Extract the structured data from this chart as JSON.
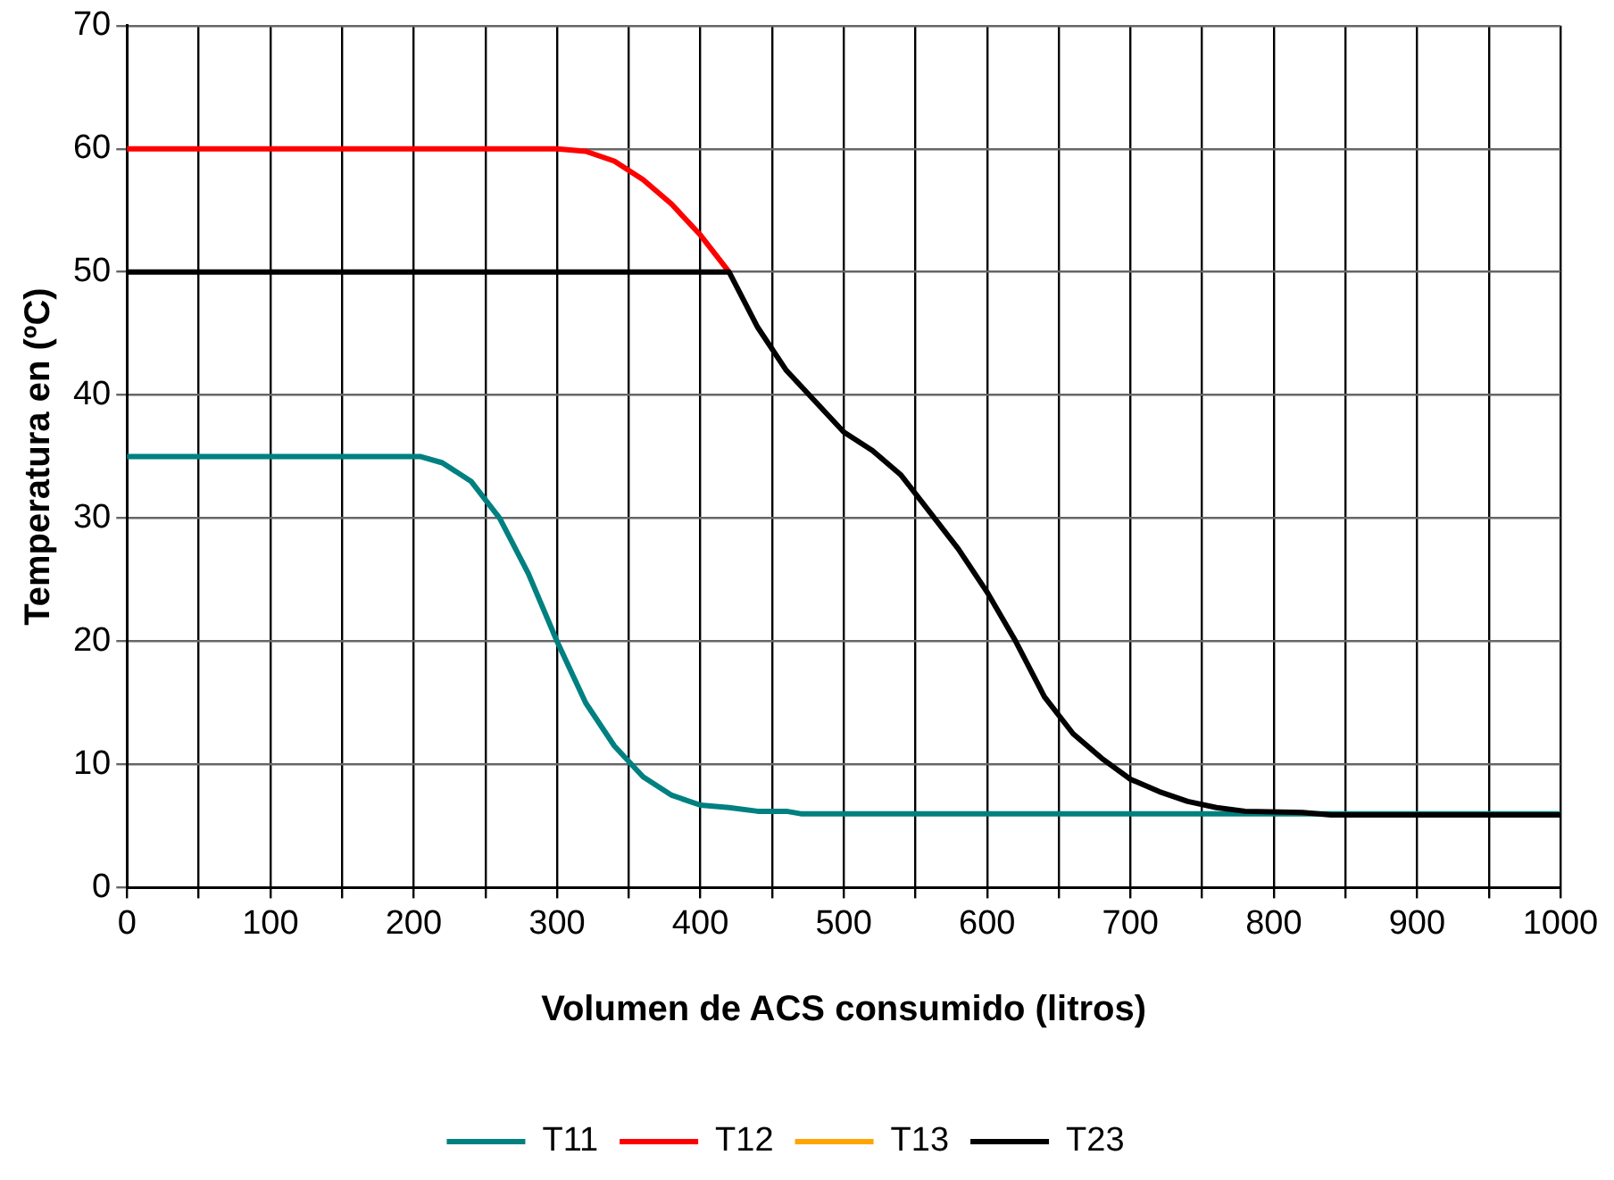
{
  "chart_data": {
    "type": "line",
    "xlabel": "Volumen de ACS consumido (litros)",
    "ylabel": "Temperatura en (ºC)",
    "xlim": [
      0,
      1000
    ],
    "ylim": [
      0,
      70
    ],
    "xticks": [
      0,
      {
        "value": 50,
        "label": null
      },
      100,
      {
        "value": 150,
        "label": null
      },
      200,
      {
        "value": 250,
        "label": null
      },
      300,
      {
        "value": 350,
        "label": null
      },
      400,
      {
        "value": 450,
        "label": null
      },
      500,
      {
        "value": 550,
        "label": null
      },
      600,
      {
        "value": 650,
        "label": null
      },
      700,
      {
        "value": 750,
        "label": null
      },
      800,
      {
        "value": 850,
        "label": null
      },
      900,
      {
        "value": 950,
        "label": null
      },
      1000
    ],
    "yticks": [
      0,
      10,
      20,
      30,
      40,
      50,
      60,
      70
    ],
    "grid": true,
    "legend": "bottom",
    "marker": "none",
    "line_style": "solid",
    "series": [
      {
        "name": "T11",
        "color": "#008080",
        "x": [
          0,
          205,
          220,
          240,
          260,
          280,
          300,
          320,
          340,
          360,
          380,
          400,
          420,
          440,
          460,
          470,
          1000
        ],
        "values": [
          35,
          35,
          34.5,
          33,
          30,
          25.5,
          20,
          15,
          11.5,
          9,
          7.5,
          6.7,
          6.5,
          6.2,
          6.2,
          6,
          6
        ]
      },
      {
        "name": "T12",
        "color": "#ff0000",
        "x": [
          0,
          300,
          320,
          340,
          360,
          380,
          400,
          420
        ],
        "values": [
          60,
          60,
          59.8,
          59,
          57.5,
          55.5,
          53,
          50
        ]
      },
      {
        "name": "T13",
        "color": "#ffa500"
      },
      {
        "name": "T23",
        "color": "#000000",
        "x": [
          0,
          420,
          440,
          460,
          480,
          500,
          520,
          540,
          560,
          580,
          600,
          620,
          640,
          660,
          680,
          700,
          720,
          740,
          760,
          780,
          820,
          840,
          1000
        ],
        "values": [
          50,
          50,
          45.5,
          42,
          39.5,
          37,
          35.5,
          33.5,
          30.5,
          27.5,
          24,
          20,
          15.5,
          12.5,
          10.5,
          8.8,
          7.8,
          7,
          6.5,
          6.2,
          6.1,
          5.9,
          5.9
        ]
      }
    ]
  }
}
